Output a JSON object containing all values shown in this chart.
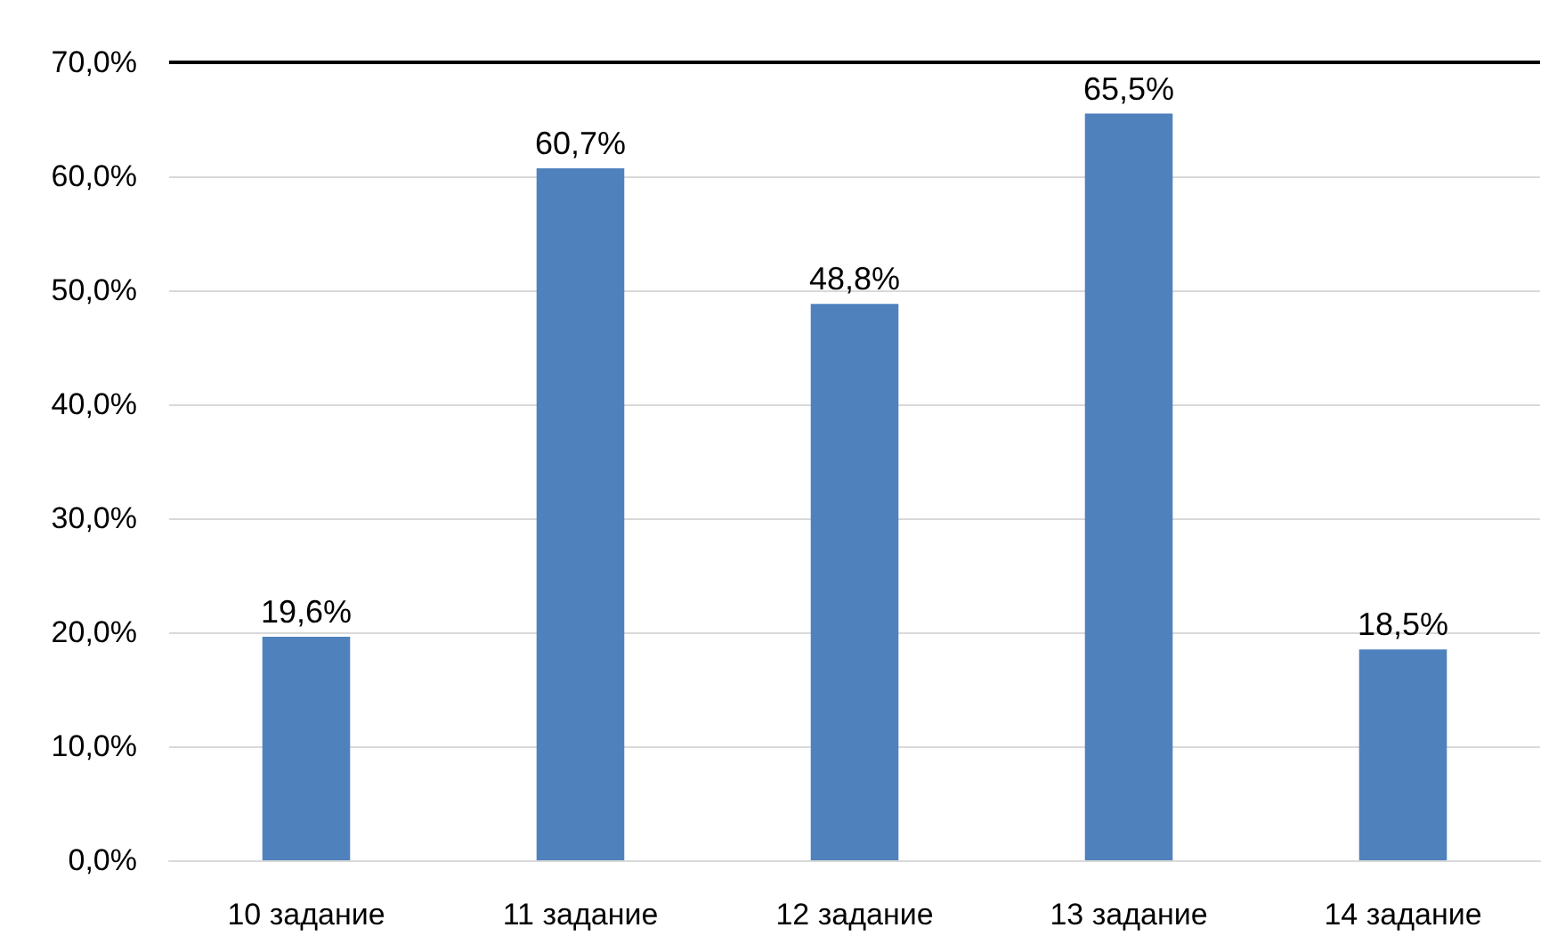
{
  "chart_data": {
    "type": "bar",
    "categories": [
      "10 задание",
      "11 задание",
      "12 задание",
      "13 задание",
      "14 задание"
    ],
    "values": [
      19.6,
      60.7,
      48.8,
      65.5,
      18.5
    ],
    "value_labels": [
      "19,6%",
      "60,7%",
      "48,8%",
      "65,5%",
      "18,5%"
    ],
    "color": "#4f81bd",
    "ylim": [
      0,
      70
    ],
    "yticks": [
      {
        "value": 0,
        "label": "0,0%"
      },
      {
        "value": 10,
        "label": "10,0%"
      },
      {
        "value": 20,
        "label": "20,0%"
      },
      {
        "value": 30,
        "label": "30,0%"
      },
      {
        "value": 40,
        "label": "40,0%"
      },
      {
        "value": 50,
        "label": "50,0%"
      },
      {
        "value": 60,
        "label": "60,0%"
      },
      {
        "value": 70,
        "label": "70,0%"
      }
    ],
    "ref_lines": [
      {
        "axis": "y",
        "value": 70,
        "color": "#000000"
      }
    ],
    "grid": "y"
  }
}
